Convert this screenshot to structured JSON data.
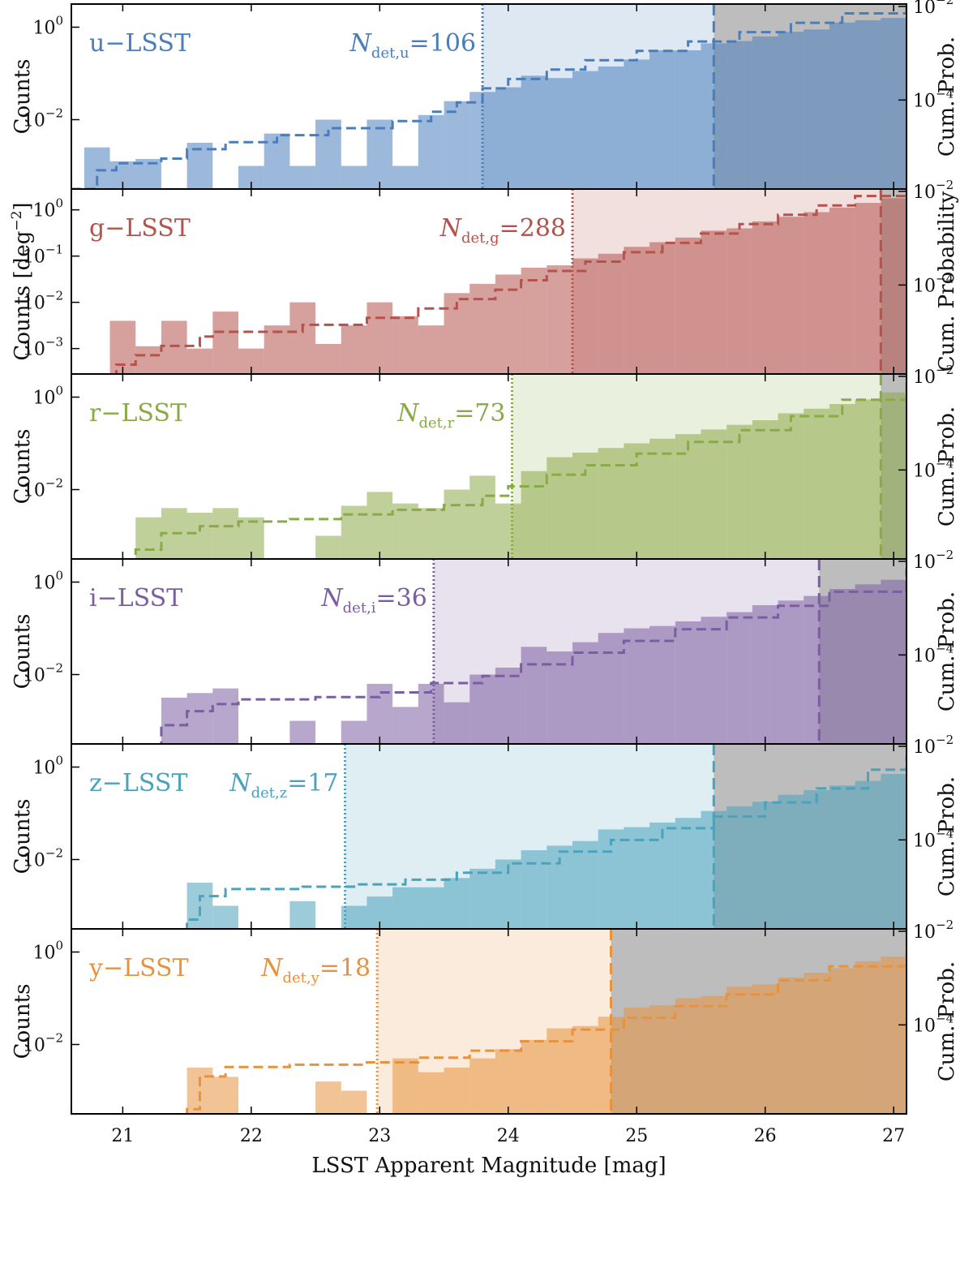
{
  "chart_data": {
    "type": "bar",
    "subplots": 6,
    "xlabel": "LSST Apparent Magnitude [mag]",
    "xlim": [
      20.6,
      27.1
    ],
    "xticks": [
      "21",
      "22",
      "23",
      "24",
      "25",
      "26",
      "27"
    ],
    "left_axis_label": "Counts",
    "left_axis_label_middle": "Counts [deg",
    "left_axis_label_middle_sup": "−2",
    "left_axis_label_middle_close": "]",
    "right_axis_label": "Cum. Prob.",
    "right_axis_label_middle": "Cum. Probability",
    "ytick_base": "10",
    "panels": [
      {
        "band": "u−LSST",
        "color": "#4a7ebb",
        "ndet_prefix": "N",
        "ndet_sub": "det,u",
        "ndet_value": "=106",
        "det_limit": 23.8,
        "sat_limit": 25.6,
        "ylog": [
          -3.5,
          0.5
        ],
        "yticks_exp": [
          "0",
          "−2"
        ],
        "ycum": [
          -5.9,
          -1.95
        ],
        "cumticks_exp": [
          "−2",
          "−4"
        ],
        "bins": [
          [
            20.7,
            -2.6
          ],
          [
            20.9,
            -2.9
          ],
          [
            21.1,
            -2.85
          ],
          [
            21.5,
            -2.5
          ],
          [
            21.9,
            -3.0
          ],
          [
            22.1,
            -2.3
          ],
          [
            22.3,
            -3.0
          ],
          [
            22.5,
            -2.0
          ],
          [
            22.7,
            -3.0
          ],
          [
            22.9,
            -2.0
          ],
          [
            23.1,
            -3.0
          ],
          [
            23.3,
            -1.9
          ],
          [
            23.5,
            -1.6
          ],
          [
            23.7,
            -1.4
          ],
          [
            23.9,
            -1.3
          ],
          [
            24.1,
            -1.05
          ],
          [
            24.3,
            -1.1
          ],
          [
            24.5,
            -0.95
          ],
          [
            24.7,
            -0.85
          ],
          [
            24.9,
            -0.7
          ],
          [
            25.1,
            -0.5
          ],
          [
            25.3,
            -0.5
          ],
          [
            25.5,
            -0.35
          ],
          [
            25.7,
            -0.3
          ],
          [
            25.9,
            -0.2
          ],
          [
            26.1,
            -0.1
          ],
          [
            26.3,
            -0.05
          ],
          [
            26.5,
            0.1
          ],
          [
            26.7,
            0.15
          ],
          [
            26.9,
            0.2
          ]
        ],
        "cum_x": [
          20.6,
          20.8,
          20.95,
          21.3,
          21.5,
          21.8,
          22.2,
          22.6,
          23.1,
          23.4,
          23.6,
          23.8,
          24.0,
          24.3,
          24.6,
          25.0,
          25.4,
          25.8,
          26.2,
          26.6,
          27.1
        ],
        "cum_y": [
          -5.9,
          -5.5,
          -5.35,
          -5.25,
          -5.05,
          -4.9,
          -4.75,
          -4.6,
          -4.45,
          -4.25,
          -4.05,
          -3.75,
          -3.55,
          -3.35,
          -3.15,
          -2.95,
          -2.75,
          -2.55,
          -2.35,
          -2.15,
          -1.95
        ]
      },
      {
        "band": "g−LSST",
        "color": "#b5524b",
        "ndet_prefix": "N",
        "ndet_sub": "det,g",
        "ndet_value": "=288",
        "det_limit": 24.5,
        "sat_limit": 26.9,
        "ylog": [
          -3.55,
          0.45
        ],
        "yticks_exp": [
          "0",
          "−1",
          "−2",
          "−3"
        ],
        "ycum": [
          -5.9,
          -1.95
        ],
        "cumticks_exp": [
          "−2",
          "−4"
        ],
        "bins": [
          [
            20.9,
            -2.4
          ],
          [
            21.1,
            -2.95
          ],
          [
            21.3,
            -2.4
          ],
          [
            21.5,
            -3.0
          ],
          [
            21.7,
            -2.2
          ],
          [
            21.9,
            -3.0
          ],
          [
            22.1,
            -2.5
          ],
          [
            22.3,
            -2.0
          ],
          [
            22.5,
            -2.9
          ],
          [
            22.7,
            -2.5
          ],
          [
            22.9,
            -2.0
          ],
          [
            23.1,
            -2.3
          ],
          [
            23.3,
            -2.5
          ],
          [
            23.5,
            -1.8
          ],
          [
            23.7,
            -1.6
          ],
          [
            23.9,
            -1.4
          ],
          [
            24.1,
            -1.25
          ],
          [
            24.3,
            -1.2
          ],
          [
            24.5,
            -1.05
          ],
          [
            24.7,
            -0.95
          ],
          [
            24.9,
            -0.8
          ],
          [
            25.1,
            -0.7
          ],
          [
            25.3,
            -0.6
          ],
          [
            25.5,
            -0.45
          ],
          [
            25.7,
            -0.4
          ],
          [
            25.9,
            -0.25
          ],
          [
            26.1,
            -0.15
          ],
          [
            26.3,
            -0.05
          ],
          [
            26.5,
            0.05
          ],
          [
            26.7,
            0.15
          ],
          [
            26.9,
            0.25
          ]
        ],
        "cum_x": [
          20.6,
          20.95,
          21.1,
          21.3,
          21.6,
          21.7,
          22.4,
          22.9,
          23.3,
          23.6,
          23.9,
          24.1,
          24.3,
          24.6,
          24.9,
          25.2,
          25.5,
          25.8,
          26.1,
          26.4,
          26.7,
          27.1
        ],
        "cum_y": [
          -6.0,
          -5.7,
          -5.5,
          -5.3,
          -5.1,
          -5.0,
          -4.85,
          -4.7,
          -4.5,
          -4.3,
          -4.1,
          -3.9,
          -3.7,
          -3.5,
          -3.3,
          -3.1,
          -2.9,
          -2.7,
          -2.5,
          -2.3,
          -2.1,
          -1.95
        ]
      },
      {
        "band": "r−LSST",
        "color": "#8aaa47",
        "ndet_prefix": "N",
        "ndet_sub": "det,r",
        "ndet_value": "=73",
        "det_limit": 24.03,
        "sat_limit": 26.9,
        "ylog": [
          -3.5,
          0.5
        ],
        "yticks_exp": [
          "0",
          "−2"
        ],
        "ycum": [
          -5.9,
          -1.95
        ],
        "cumticks_exp": [
          "−2",
          "−4"
        ],
        "bins": [
          [
            21.1,
            -2.6
          ],
          [
            21.3,
            -2.4
          ],
          [
            21.5,
            -2.5
          ],
          [
            21.7,
            -2.4
          ],
          [
            21.9,
            -2.6
          ],
          [
            22.5,
            -3.0
          ],
          [
            22.7,
            -2.35
          ],
          [
            22.9,
            -2.05
          ],
          [
            23.1,
            -2.3
          ],
          [
            23.3,
            -2.4
          ],
          [
            23.5,
            -2.0
          ],
          [
            23.7,
            -1.7
          ],
          [
            23.9,
            -2.3
          ],
          [
            24.1,
            -1.6
          ],
          [
            24.3,
            -1.3
          ],
          [
            24.5,
            -1.2
          ],
          [
            24.7,
            -1.1
          ],
          [
            24.9,
            -1.0
          ],
          [
            25.1,
            -0.9
          ],
          [
            25.3,
            -0.8
          ],
          [
            25.5,
            -0.7
          ],
          [
            25.7,
            -0.6
          ],
          [
            25.9,
            -0.5
          ],
          [
            26.1,
            -0.35
          ],
          [
            26.3,
            -0.25
          ],
          [
            26.5,
            -0.15
          ],
          [
            26.7,
            -0.05
          ],
          [
            26.9,
            0.1
          ]
        ],
        "cum_x": [
          20.6,
          21.1,
          21.3,
          21.6,
          21.9,
          22.3,
          22.7,
          23.1,
          23.5,
          23.8,
          24.0,
          24.3,
          24.6,
          25.0,
          25.4,
          25.8,
          26.2,
          26.6,
          27.1
        ],
        "cum_y": [
          -6.0,
          -5.7,
          -5.35,
          -5.2,
          -5.1,
          -5.05,
          -4.95,
          -4.85,
          -4.75,
          -4.55,
          -4.35,
          -4.1,
          -3.9,
          -3.65,
          -3.4,
          -3.15,
          -2.85,
          -2.5,
          -2.1
        ]
      },
      {
        "band": "i−LSST",
        "color": "#7b5ea2",
        "ndet_prefix": "N",
        "ndet_sub": "det,i",
        "ndet_value": "=36",
        "det_limit": 23.42,
        "sat_limit": 26.42,
        "ylog": [
          -3.5,
          0.5
        ],
        "yticks_exp": [
          "0",
          "−2"
        ],
        "ycum": [
          -5.9,
          -1.95
        ],
        "cumticks_exp": [
          "−2",
          "−4"
        ],
        "bins": [
          [
            21.3,
            -2.5
          ],
          [
            21.5,
            -2.4
          ],
          [
            21.7,
            -2.3
          ],
          [
            22.3,
            -3.0
          ],
          [
            22.7,
            -3.0
          ],
          [
            22.9,
            -2.2
          ],
          [
            23.1,
            -2.7
          ],
          [
            23.3,
            -2.2
          ],
          [
            23.5,
            -2.6
          ],
          [
            23.7,
            -2.0
          ],
          [
            23.9,
            -1.85
          ],
          [
            24.1,
            -1.4
          ],
          [
            24.3,
            -1.5
          ],
          [
            24.5,
            -1.3
          ],
          [
            24.7,
            -1.1
          ],
          [
            24.9,
            -1.0
          ],
          [
            25.1,
            -0.95
          ],
          [
            25.3,
            -0.85
          ],
          [
            25.5,
            -0.75
          ],
          [
            25.7,
            -0.65
          ],
          [
            25.9,
            -0.5
          ],
          [
            26.1,
            -0.4
          ],
          [
            26.3,
            -0.3
          ],
          [
            26.5,
            -0.15
          ],
          [
            26.7,
            -0.05
          ],
          [
            26.9,
            0.05
          ]
        ],
        "cum_x": [
          20.6,
          21.3,
          21.5,
          21.7,
          21.9,
          22.5,
          23.0,
          23.4,
          23.8,
          24.1,
          24.5,
          24.9,
          25.3,
          25.7,
          26.1,
          26.5,
          27.1
        ],
        "cum_y": [
          -6.0,
          -5.5,
          -5.2,
          -5.05,
          -4.95,
          -4.9,
          -4.8,
          -4.6,
          -4.45,
          -4.2,
          -3.95,
          -3.7,
          -3.45,
          -3.2,
          -2.95,
          -2.65,
          -2.15
        ]
      },
      {
        "band": "z−LSST",
        "color": "#4aa3bb",
        "ndet_prefix": "N",
        "ndet_sub": "det,z",
        "ndet_value": "=17",
        "det_limit": 22.73,
        "sat_limit": 25.6,
        "ylog": [
          -3.5,
          0.5
        ],
        "yticks_exp": [
          "0",
          "−2"
        ],
        "ycum": [
          -5.9,
          -1.95
        ],
        "cumticks_exp": [
          "−2",
          "−4"
        ],
        "bins": [
          [
            21.5,
            -2.5
          ],
          [
            21.7,
            -3.0
          ],
          [
            22.3,
            -2.9
          ],
          [
            22.7,
            -3.0
          ],
          [
            22.9,
            -2.8
          ],
          [
            23.1,
            -2.6
          ],
          [
            23.3,
            -2.6
          ],
          [
            23.5,
            -2.4
          ],
          [
            23.7,
            -2.2
          ],
          [
            23.9,
            -2.0
          ],
          [
            24.1,
            -1.8
          ],
          [
            24.3,
            -1.7
          ],
          [
            24.5,
            -1.6
          ],
          [
            24.7,
            -1.35
          ],
          [
            24.9,
            -1.3
          ],
          [
            25.1,
            -1.2
          ],
          [
            25.3,
            -1.1
          ],
          [
            25.5,
            -0.95
          ],
          [
            25.7,
            -0.85
          ],
          [
            25.9,
            -0.75
          ],
          [
            26.1,
            -0.6
          ],
          [
            26.3,
            -0.5
          ],
          [
            26.5,
            -0.4
          ],
          [
            26.7,
            -0.3
          ],
          [
            26.9,
            -0.15
          ]
        ],
        "cum_x": [
          20.6,
          21.5,
          21.6,
          21.8,
          22.4,
          22.8,
          23.2,
          23.6,
          24.0,
          24.4,
          24.8,
          25.2,
          25.6,
          26.0,
          26.4,
          26.8,
          27.1
        ],
        "cum_y": [
          -6.0,
          -5.7,
          -5.2,
          -5.05,
          -5.0,
          -4.95,
          -4.85,
          -4.7,
          -4.5,
          -4.25,
          -4.0,
          -3.75,
          -3.5,
          -3.2,
          -2.9,
          -2.5,
          -2.2
        ]
      },
      {
        "band": "y−LSST",
        "color": "#e8923e",
        "ndet_prefix": "N",
        "ndet_sub": "det,y",
        "ndet_value": "=18",
        "det_limit": 22.98,
        "sat_limit": 24.8,
        "ylog": [
          -3.5,
          0.5
        ],
        "yticks_exp": [
          "0",
          "−2"
        ],
        "ycum": [
          -5.9,
          -1.95
        ],
        "cumticks_exp": [
          "−2",
          "−4"
        ],
        "bins": [
          [
            21.5,
            -2.5
          ],
          [
            21.7,
            -2.7
          ],
          [
            22.5,
            -2.8
          ],
          [
            22.7,
            -3.0
          ],
          [
            23.1,
            -2.3
          ],
          [
            23.3,
            -2.6
          ],
          [
            23.5,
            -2.5
          ],
          [
            23.7,
            -2.3
          ],
          [
            23.9,
            -2.1
          ],
          [
            24.1,
            -1.9
          ],
          [
            24.3,
            -1.65
          ],
          [
            24.5,
            -1.6
          ],
          [
            24.7,
            -1.4
          ],
          [
            24.9,
            -1.2
          ],
          [
            25.1,
            -1.15
          ],
          [
            25.3,
            -1.0
          ],
          [
            25.5,
            -0.95
          ],
          [
            25.7,
            -0.75
          ],
          [
            25.9,
            -0.7
          ],
          [
            26.1,
            -0.55
          ],
          [
            26.3,
            -0.45
          ],
          [
            26.5,
            -0.35
          ],
          [
            26.7,
            -0.2
          ],
          [
            26.9,
            -0.1
          ]
        ],
        "cum_x": [
          20.6,
          21.5,
          21.6,
          21.8,
          22.3,
          22.9,
          23.3,
          23.7,
          24.1,
          24.5,
          24.9,
          25.3,
          25.7,
          26.1,
          26.5,
          27.1
        ],
        "cum_y": [
          -6.0,
          -5.8,
          -5.1,
          -4.9,
          -4.85,
          -4.8,
          -4.7,
          -4.55,
          -4.35,
          -4.1,
          -3.85,
          -3.6,
          -3.35,
          -3.05,
          -2.75,
          -2.25
        ]
      }
    ]
  }
}
